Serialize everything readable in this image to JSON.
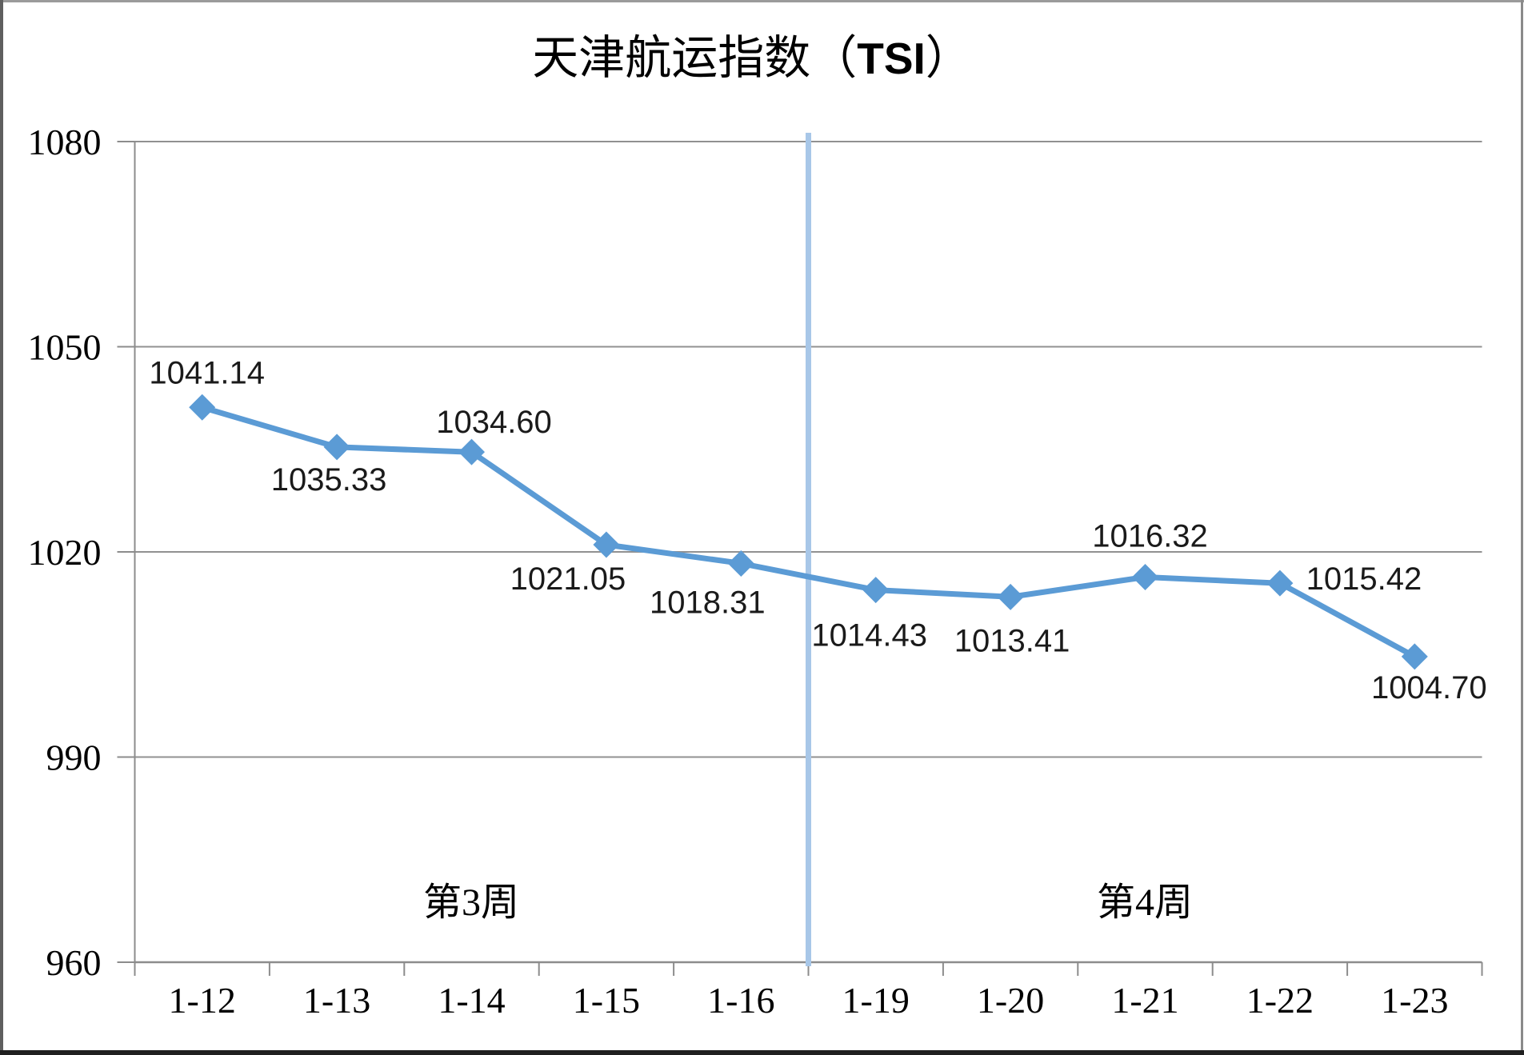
{
  "title": {
    "prefix": "天津航运指数（",
    "tsi": "TSI",
    "suffix": "）",
    "full": "天津航运指数（TSI）"
  },
  "annotations": {
    "week3": "第3周",
    "week4": "第4周"
  },
  "chart_data": {
    "type": "line",
    "title": "天津航运指数（TSI）",
    "categories": [
      "1-12",
      "1-13",
      "1-14",
      "1-15",
      "1-16",
      "1-19",
      "1-20",
      "1-21",
      "1-22",
      "1-23"
    ],
    "values": [
      1041.14,
      1035.33,
      1034.6,
      1021.05,
      1018.31,
      1014.43,
      1013.41,
      1016.32,
      1015.42,
      1004.7
    ],
    "data_labels": [
      "1041.14",
      "1035.33",
      "1034.60",
      "1021.05",
      "1018.31",
      "1014.43",
      "1013.41",
      "1016.32",
      "1015.42",
      "1004.70"
    ],
    "y_ticks": [
      960,
      990,
      1020,
      1050,
      1080
    ],
    "y_tick_labels": [
      "960",
      "990",
      "1020",
      "1050",
      "1080"
    ],
    "ylim": [
      960,
      1080
    ],
    "xlabel": "",
    "ylabel": "",
    "grid": "horizontal",
    "legend": "none",
    "marker": "diamond",
    "series_color": "#5B9BD5",
    "divider_color": "#A8C7E8",
    "gridline_color": "#919191",
    "axis_color": "#8C8C8C",
    "label_color": "#1a1a1a",
    "divider_between": [
      "1-16",
      "1-19"
    ],
    "region_annotations": [
      {
        "text": "第3周",
        "region": "categories 1-12 to 1-16"
      },
      {
        "text": "第4周",
        "region": "categories 1-19 to 1-23"
      }
    ]
  }
}
